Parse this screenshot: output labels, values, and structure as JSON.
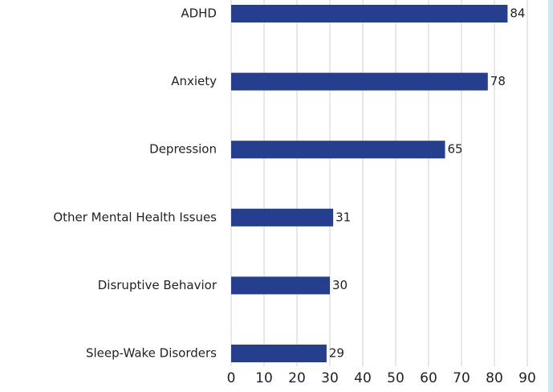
{
  "chart_data": {
    "type": "bar",
    "orientation": "horizontal",
    "categories": [
      "ADHD",
      "Anxiety",
      "Depression",
      "Other Mental Health Issues",
      "Disruptive Behavior",
      "Sleep-Wake Disorders"
    ],
    "values": [
      84,
      78,
      65,
      31,
      30,
      29
    ],
    "color": "#253f8e",
    "xlim": [
      0,
      90
    ],
    "xticks": [
      0,
      10,
      20,
      30,
      40,
      50,
      60,
      70,
      80,
      90
    ],
    "grid": true
  }
}
